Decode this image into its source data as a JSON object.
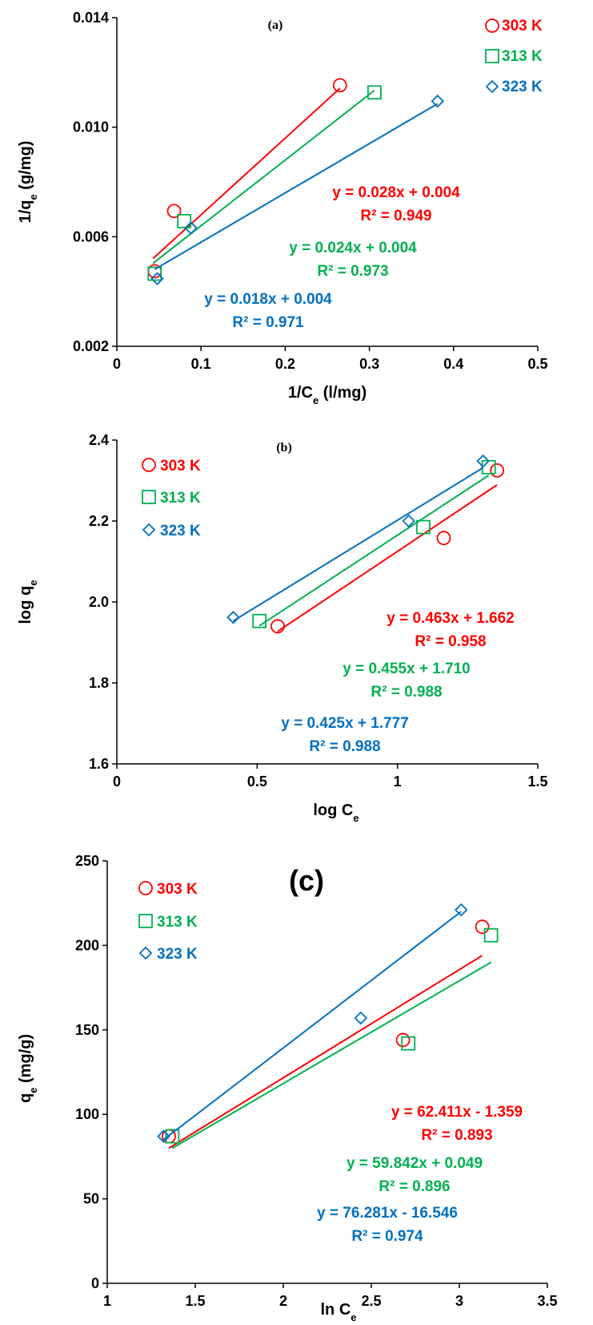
{
  "chart_data": [
    {
      "type": "scatter",
      "label": "(a)",
      "xlabel": "1/C",
      "xlabel_sub": "e",
      "xlabel_unit": " (l/mg)",
      "ylabel": "1/q",
      "ylabel_sub": "e",
      "ylabel_unit": " (g/mg)",
      "xlim": [
        0,
        0.5
      ],
      "ylim": [
        0.002,
        0.014
      ],
      "xticks": [
        "0",
        "0.1",
        "0.2",
        "0.3",
        "0.4",
        "0.5"
      ],
      "yticks": [
        "0.002",
        "0.006",
        "0.010",
        "0.014"
      ],
      "legend_position": "top-right",
      "series": [
        {
          "name": "303 K",
          "color": "#ff0000",
          "marker": "circle",
          "x": [
            0.045,
            0.068,
            0.265
          ],
          "y": [
            0.00474,
            0.00694,
            0.01153
          ],
          "fit": {
            "x": [
              0.043,
              0.265
            ]
          },
          "equation": "y = 0.028x + 0.004",
          "r2": "R² = 0.949"
        },
        {
          "name": "313 K",
          "color": "#00b050",
          "marker": "square",
          "x": [
            0.045,
            0.08,
            0.306
          ],
          "y": [
            0.00465,
            0.00657,
            0.01127
          ],
          "fit": {
            "x": [
              0.043,
              0.306
            ]
          },
          "equation": "y = 0.024x + 0.004",
          "r2": "R² = 0.973"
        },
        {
          "name": "323 K",
          "color": "#0070c0",
          "marker": "diamond",
          "x": [
            0.048,
            0.088,
            0.381
          ],
          "y": [
            0.00447,
            0.00632,
            0.01095
          ],
          "fit": {
            "x": [
              0.045,
              0.381
            ]
          },
          "equation": "y = 0.018x + 0.004",
          "r2": "R² = 0.971"
        }
      ]
    },
    {
      "type": "scatter",
      "label": "(b)",
      "xlabel": "log C",
      "xlabel_sub": "e",
      "xlabel_unit": "",
      "ylabel": "log q",
      "ylabel_sub": "e",
      "ylabel_unit": "",
      "xlim": [
        0,
        1.5
      ],
      "ylim": [
        1.6,
        2.4
      ],
      "xticks": [
        "0",
        "0.5",
        "1",
        "1.5"
      ],
      "yticks": [
        "1.6",
        "1.8",
        "2.0",
        "2.2",
        "2.4"
      ],
      "legend_position": "top-left",
      "series": [
        {
          "name": "303 K",
          "color": "#ff0000",
          "marker": "circle",
          "x": [
            0.573,
            1.165,
            1.355
          ],
          "y": [
            1.94,
            2.158,
            2.325
          ],
          "fit": {
            "x": [
              0.573,
              1.355
            ]
          },
          "equation": "y = 0.463x + 1.662",
          "r2": "R² = 0.958"
        },
        {
          "name": "313 K",
          "color": "#00b050",
          "marker": "square",
          "x": [
            0.508,
            1.092,
            1.325
          ],
          "y": [
            1.953,
            2.185,
            2.333
          ],
          "fit": {
            "x": [
              0.508,
              1.325
            ]
          },
          "equation": "y = 0.455x + 1.710",
          "r2": "R² = 0.988"
        },
        {
          "name": "323 K",
          "color": "#0070c0",
          "marker": "diamond",
          "x": [
            0.415,
            1.04,
            1.305
          ],
          "y": [
            1.962,
            2.2,
            2.348
          ],
          "fit": {
            "x": [
              0.415,
              1.305
            ]
          },
          "equation": "y = 0.425x + 1.777",
          "r2": "R² = 0.988"
        }
      ]
    },
    {
      "type": "scatter",
      "label": "(c)",
      "xlabel": "ln C",
      "xlabel_sub": "e",
      "xlabel_unit": "",
      "ylabel": "q",
      "ylabel_sub": "e",
      "ylabel_unit": " (mg/g)",
      "xlim": [
        1,
        3.5
      ],
      "ylim": [
        0,
        250
      ],
      "xticks": [
        "1",
        "1.5",
        "2",
        "2.5",
        "3",
        "3.5"
      ],
      "yticks": [
        "0",
        "50",
        "100",
        "150",
        "200",
        "250"
      ],
      "legend_position": "top-left",
      "series": [
        {
          "name": "303 K",
          "color": "#ff0000",
          "marker": "circle",
          "x": [
            1.35,
            2.68,
            3.13
          ],
          "y": [
            87,
            144,
            211
          ],
          "fit": {
            "x": [
              1.35,
              3.13
            ]
          },
          "equation": "y = 62.411x - 1.359",
          "r2": "R² = 0.893"
        },
        {
          "name": "313 K",
          "color": "#00b050",
          "marker": "square",
          "x": [
            1.37,
            2.71,
            3.18
          ],
          "y": [
            87,
            142,
            206
          ],
          "fit": {
            "x": [
              1.37,
              3.18
            ]
          },
          "equation": "y = 59.842x + 0.049",
          "r2": "R² = 0.896"
        },
        {
          "name": "323 K",
          "color": "#0070c0",
          "marker": "diamond",
          "x": [
            1.32,
            2.44,
            3.01
          ],
          "y": [
            87,
            157,
            221
          ],
          "fit": {
            "x": [
              1.32,
              3.01
            ]
          },
          "equation": "y = 76.281x - 16.546",
          "r2": "R² = 0.974"
        }
      ]
    }
  ]
}
